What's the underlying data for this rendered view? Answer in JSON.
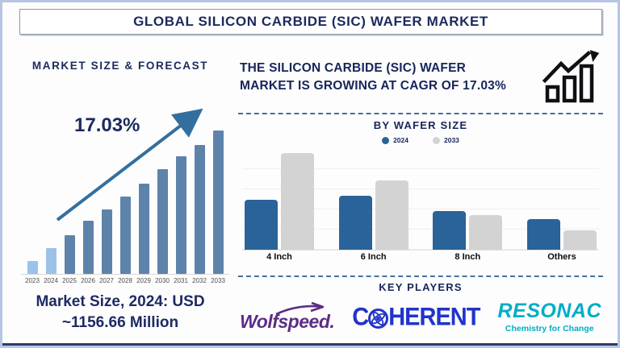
{
  "header": {
    "title": "GLOBAL SILICON CARBIDE (SIC) WAFER MARKET"
  },
  "left_panel": {
    "heading": "MARKET SIZE & FORECAST",
    "growth_annotation": "17.03%",
    "caption": {
      "line1": "Market Size, 2024: USD",
      "line2": "~1156.66 Million"
    }
  },
  "right_panel": {
    "headline": {
      "line1": "THE SILICON CARBIDE (SIC) WAFER",
      "line2": "MARKET IS GROWING AT CAGR OF 17.03%"
    },
    "wafer_heading": "BY WAFER SIZE",
    "key_players_heading": "KEY PLAYERS",
    "players": [
      {
        "name": "Wolfspeed.",
        "color": "#5b2d86"
      },
      {
        "name_prefix": "C",
        "name_suffix": "HERENT",
        "name": "COHERENT",
        "color": "#2133cc"
      },
      {
        "name": "RESONAC",
        "tagline": "Chemistry for Change",
        "color": "#00aec4"
      }
    ]
  },
  "icons": {
    "growth_chart_icon": "bar-chart-with-rising-arrow",
    "wolfspeed_swoosh_icon": "swoosh-arrow",
    "coherent_atom_icon": "atom-orbits"
  },
  "colors": {
    "navy_text": "#1b2a5e",
    "page_border": "#b6c6e2",
    "dashed_separator": "#44709d",
    "arrow": "#336f9e"
  },
  "chart_data": [
    {
      "id": "market_size_forecast",
      "type": "bar",
      "title": "MARKET SIZE & FORECAST",
      "categories": [
        "2023",
        "2024",
        "2025",
        "2026",
        "2027",
        "2028",
        "2029",
        "2030",
        "2031",
        "2032",
        "2033"
      ],
      "values": [
        9,
        18,
        27,
        37,
        45,
        54,
        63,
        73,
        82,
        90,
        100
      ],
      "value_unit": "percent of tallest bar (axis unlabeled, visual estimate)",
      "annotation": "17.03%",
      "note": "Market Size, 2024: USD ~1156.66 Million",
      "highlight_categories": [
        "2023",
        "2024"
      ],
      "bar_color_highlight": "#9cc2e8",
      "bar_color_default": "#5e83aa",
      "grid": false,
      "xlabel": "",
      "ylabel": ""
    },
    {
      "id": "by_wafer_size",
      "type": "bar",
      "title": "BY WAFER SIZE",
      "categories": [
        "4 Inch",
        "6 Inch",
        "8 Inch",
        "Others"
      ],
      "series": [
        {
          "name": "2024",
          "color": "#2a6399",
          "values": [
            52,
            56,
            40,
            32
          ]
        },
        {
          "name": "2033",
          "color": "#d3d3d3",
          "values": [
            100,
            72,
            36,
            20
          ]
        }
      ],
      "value_unit": "percent of tallest bar (axis unlabeled, visual estimate)",
      "legend_position": "top",
      "grid": true,
      "xlabel": "",
      "ylabel": ""
    }
  ]
}
